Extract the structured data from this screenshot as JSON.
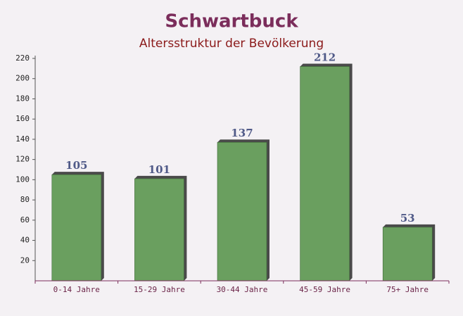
{
  "chart_data": {
    "type": "bar",
    "title": "Schwartbuck",
    "subtitle": "Altersstruktur der Bevölkerung",
    "categories": [
      "0-14 Jahre",
      "15-29 Jahre",
      "30-44 Jahre",
      "45-59 Jahre",
      "75+ Jahre"
    ],
    "values": [
      105,
      101,
      137,
      212,
      53
    ],
    "color": "#6a9f5f",
    "ylim": [
      0,
      220
    ],
    "yticks": [
      20,
      40,
      60,
      80,
      100,
      120,
      140,
      160,
      180,
      200,
      220
    ],
    "grid": false
  }
}
